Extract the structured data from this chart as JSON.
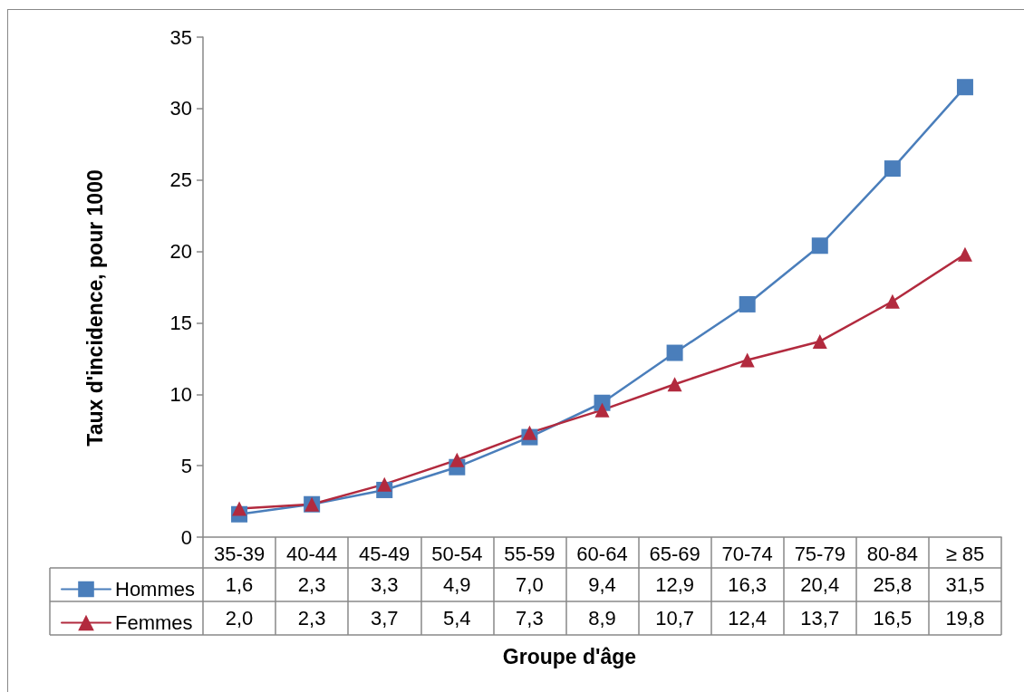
{
  "chart_data": {
    "type": "line",
    "xlabel": "Groupe d'âge",
    "ylabel": "Taux d'incidence, pour 1000",
    "categories": [
      "35-39",
      "40-44",
      "45-49",
      "50-54",
      "55-59",
      "60-64",
      "65-69",
      "70-74",
      "75-79",
      "80-84",
      "≥ 85"
    ],
    "series": [
      {
        "name": "Hommes",
        "color": "#4a7ebb",
        "marker": "square",
        "values": [
          1.6,
          2.3,
          3.3,
          4.9,
          7.0,
          9.4,
          12.9,
          16.3,
          20.4,
          25.8,
          31.5
        ],
        "value_labels": [
          "1,6",
          "2,3",
          "3,3",
          "4,9",
          "7,0",
          "9,4",
          "12,9",
          "16,3",
          "20,4",
          "25,8",
          "31,5"
        ]
      },
      {
        "name": "Femmes",
        "color": "#b22a3e",
        "marker": "triangle",
        "values": [
          2.0,
          2.3,
          3.7,
          5.4,
          7.3,
          8.9,
          10.7,
          12.4,
          13.7,
          16.5,
          19.8
        ],
        "value_labels": [
          "2,0",
          "2,3",
          "3,7",
          "5,4",
          "7,3",
          "8,9",
          "10,7",
          "12,4",
          "13,7",
          "16,5",
          "19,8"
        ]
      }
    ],
    "ylim": [
      0,
      35
    ],
    "yticks": [
      0,
      5,
      10,
      15,
      20,
      25,
      30,
      35
    ],
    "legend": "bottom left",
    "line_style": "solid"
  }
}
